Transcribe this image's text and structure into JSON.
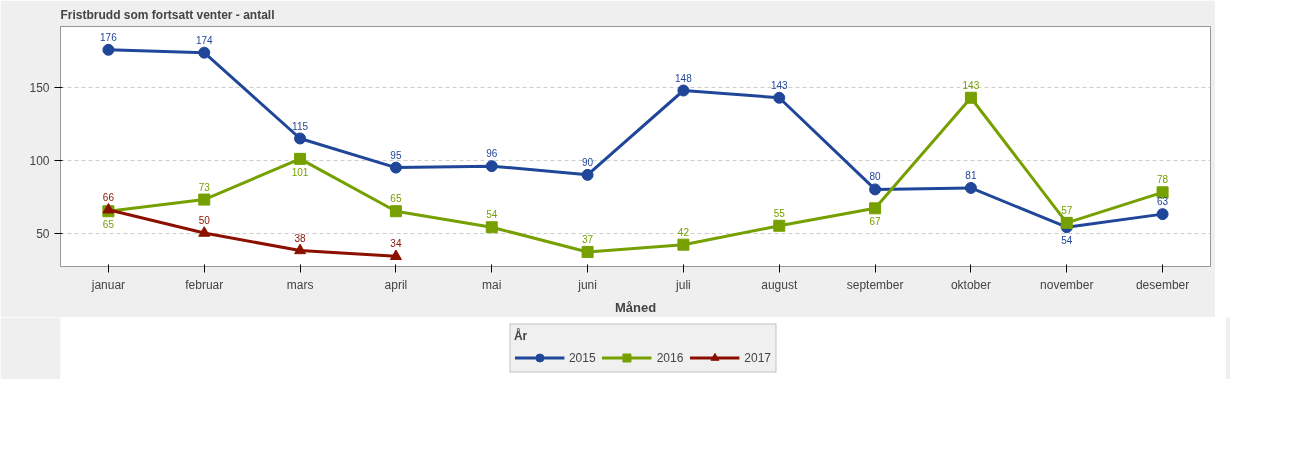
{
  "chart_data": {
    "type": "line",
    "title": "Fristbrudd som fortsatt venter - antall",
    "xlabel": "Måned",
    "legend_title": "År",
    "categories": [
      "januar",
      "februar",
      "mars",
      "april",
      "mai",
      "juni",
      "juli",
      "august",
      "september",
      "oktober",
      "november",
      "desember"
    ],
    "series": [
      {
        "name": "2015",
        "color": "#1f4699",
        "marker": "circle",
        "values": [
          176,
          174,
          115,
          95,
          96,
          90,
          148,
          143,
          80,
          81,
          54,
          63
        ]
      },
      {
        "name": "2016",
        "color": "#76a000",
        "marker": "square",
        "values": [
          65,
          73,
          101,
          65,
          54,
          37,
          42,
          55,
          67,
          143,
          57,
          78
        ]
      },
      {
        "name": "2017",
        "color": "#8b1000",
        "marker": "triangle",
        "values": [
          66,
          50,
          38,
          34,
          null,
          null,
          null,
          null,
          null,
          null,
          null,
          null
        ]
      }
    ],
    "ylim": [
      27,
      192
    ],
    "yticks": [
      50,
      100,
      150
    ],
    "grid": "y",
    "legend": "bottom",
    "data_labels": true,
    "line_style": "solid"
  }
}
